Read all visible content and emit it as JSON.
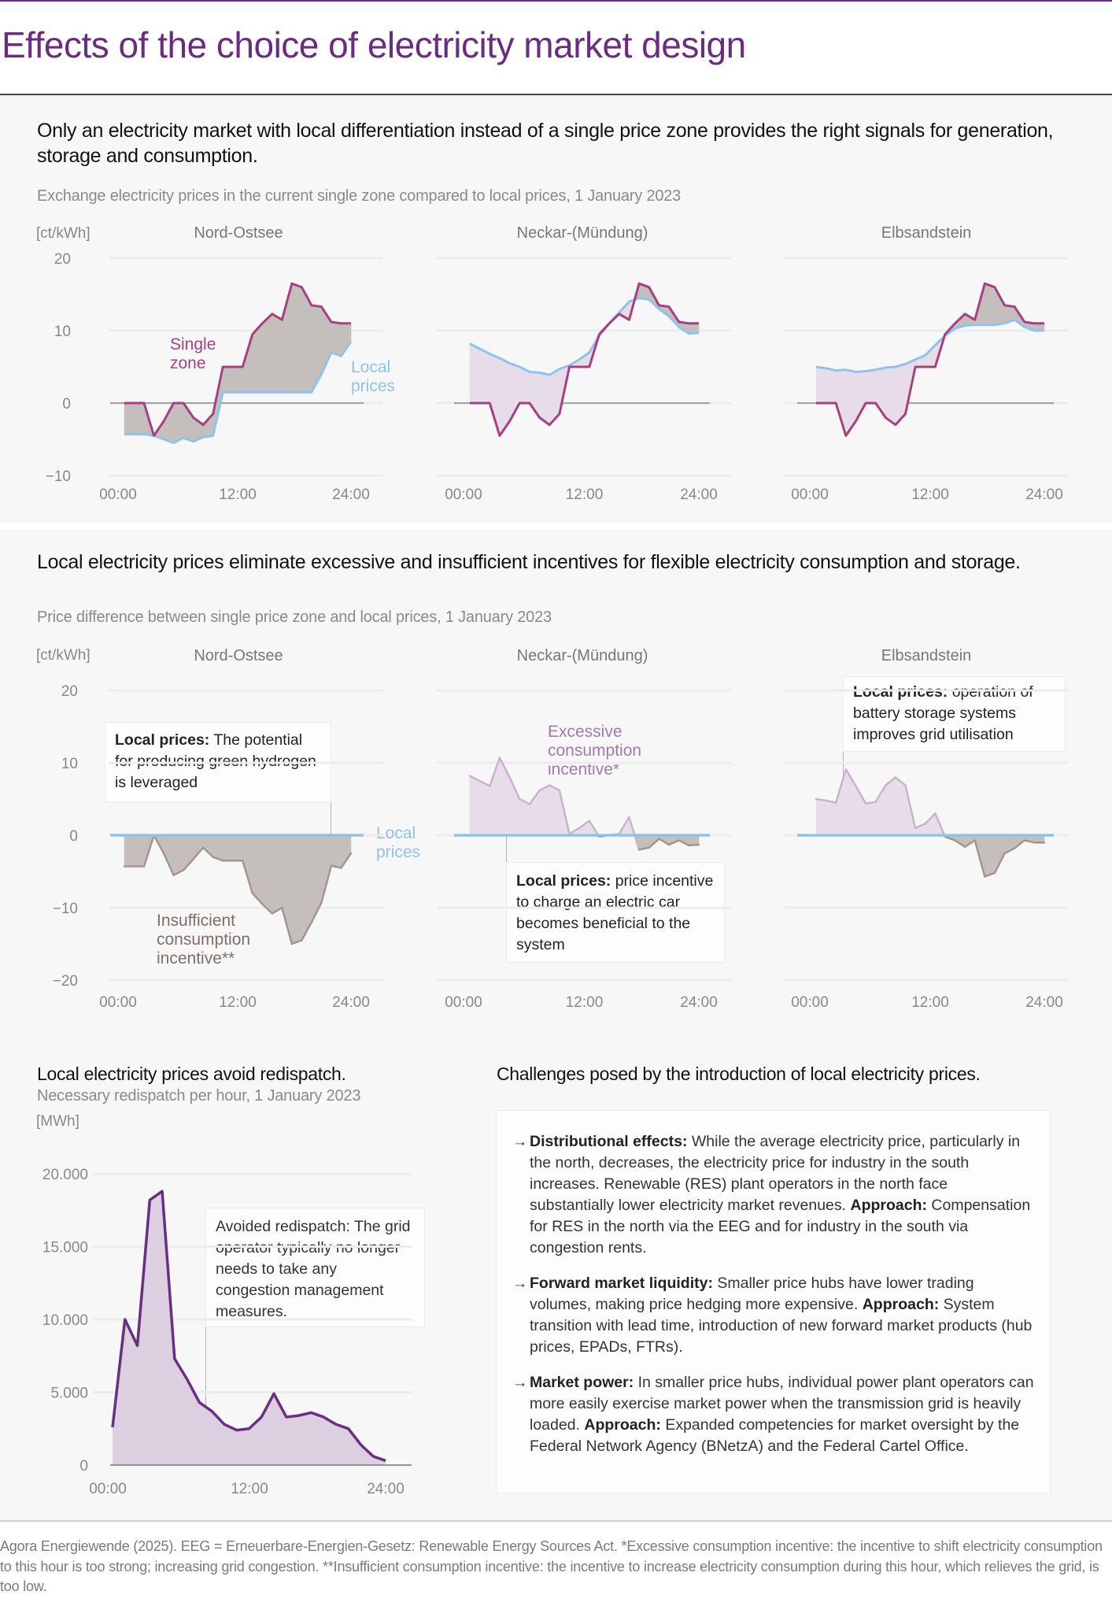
{
  "header": {
    "title": "Effects of the choice of electricity market design"
  },
  "section1": {
    "headline": "Only an electricity market with local differentiation instead of a single price zone provides the right signals for generation, storage and consumption.",
    "subtitle": "Exchange electricity prices in the current single zone compared to local prices, 1 January 2023"
  },
  "section2": {
    "headline": "Local electricity prices eliminate excessive and insufficient incentives for flexible electricity consumption and storage.",
    "subtitle": "Price difference between single price zone and local prices, 1 January 2023"
  },
  "redispatch": {
    "headline": "Local electricity prices avoid redispatch.",
    "subtitle": "Necessary redispatch per hour, 1 January 2023"
  },
  "challenges": {
    "title": "Challenges posed by the introduction of local electricity prices.",
    "arrow_icon": "→",
    "items": [
      {
        "term": "Distributional effects:",
        "text": " While the average electricity price, par­ticularly in the north, decreases, the electricity price for indus­try in the south increases. Renewable (RES) plant operators in the north face substantially lower electricity market revenues. ",
        "approach_label": "Approach:",
        "approach_text": " Compensation for RES in the north via the EEG and for industry in the south via congestion rents."
      },
      {
        "term": "Forward market liquidity:",
        "text": " Smaller price hubs have lower trading volumes, making price hedging more expensive. ",
        "approach_label": "Approach:",
        "approach_text": " System transition with lead time, introduction of new forward market products (hub prices, EPADs, FTRs)."
      },
      {
        "term": "Market power:",
        "text": " In smaller price hubs, individual power plant operators can more easily exercise market power when the transmission grid is heavily loaded. ",
        "approach_label": "Approach:",
        "approach_text": " Expanded com­petencies for market oversight by the Federal Network Agency (BNetzA) and the Federal Cartel Office."
      }
    ]
  },
  "footer": {
    "source": "Agora Energiewende (2025). EEG = Erneuerbare-Energien-Gesetz: Renewable Energy Sources Act. *Excessive consumption incentive: the in­centive to shift electricity consumption to this hour is too strong; increasing grid congestion. **Insufficient consumption incentive: the incentive to increase electricity consumption during this hour, which relieves the grid, is too low."
  },
  "colors": {
    "brand_purple": "#6a2c7e",
    "single_zone": "#a8407f",
    "local_prices": "#8ec3ec",
    "fill_single_above": "#c4bfbd",
    "fill_local_above": "#e6dde8",
    "diff_negative_line": "#a39592",
    "diff_positive_line": "#c9b3cc",
    "redispatch_line": "#6b2f82",
    "redispatch_fill": "#dccfe0"
  },
  "chart_data": [
    {
      "type": "line",
      "unit_label": "[ct/kWh]",
      "ylim": [
        -10,
        20
      ],
      "yticks": [
        "20",
        "10",
        "0",
        "−10"
      ],
      "xticks": [
        "00:00",
        "12:00",
        "24:00"
      ],
      "grid": true,
      "x": [
        "00:00",
        "01:00",
        "02:00",
        "03:00",
        "04:00",
        "05:00",
        "06:00",
        "07:00",
        "08:00",
        "09:00",
        "10:00",
        "11:00",
        "12:00",
        "13:00",
        "14:00",
        "15:00",
        "16:00",
        "17:00",
        "18:00",
        "19:00",
        "20:00",
        "21:00",
        "22:00",
        "23:00"
      ],
      "series_labels": {
        "single": "Single zone",
        "local": "Local prices"
      },
      "panels": [
        {
          "title": "Nord-Ostsee",
          "series": [
            {
              "name": "Single zone",
              "values": [
                0,
                0,
                0,
                -4.5,
                -2.5,
                0,
                0,
                -2,
                -3,
                -1.5,
                5,
                5,
                5,
                9.5,
                11,
                12.3,
                11.5,
                16.5,
                16,
                13.5,
                13.3,
                11.2,
                11,
                11
              ]
            },
            {
              "name": "Local prices",
              "values": [
                -4.3,
                -4.3,
                -4.3,
                -4.5,
                -5,
                -5.5,
                -4.8,
                -5.3,
                -4.7,
                -4.5,
                1.5,
                1.5,
                1.5,
                1.5,
                1.5,
                1.5,
                1.5,
                1.5,
                1.5,
                1.5,
                4,
                7,
                6.5,
                8.5
              ]
            }
          ]
        },
        {
          "title": "Neckar-(Mündung)",
          "series": [
            {
              "name": "Single zone",
              "values": [
                0,
                0,
                0,
                -4.5,
                -2.5,
                0,
                0,
                -2,
                -3,
                -1.5,
                5,
                5,
                5,
                9.5,
                11,
                12.3,
                11.5,
                16.5,
                16,
                13.5,
                13.3,
                11.2,
                11,
                11
              ]
            },
            {
              "name": "Local prices",
              "values": [
                8.2,
                7.5,
                6.8,
                6.2,
                5.5,
                5,
                4.3,
                4.2,
                3.9,
                4.7,
                5.2,
                6,
                7,
                9.3,
                11,
                12.5,
                14,
                14.5,
                14.3,
                13,
                12,
                10.5,
                9.6,
                9.7
              ]
            }
          ]
        },
        {
          "title": "Elbsandstein",
          "series": [
            {
              "name": "Single zone",
              "values": [
                0,
                0,
                0,
                -4.5,
                -2.5,
                0,
                0,
                -2,
                -3,
                -1.5,
                5,
                5,
                5,
                9.5,
                11,
                12.3,
                11.5,
                16.5,
                16,
                13.5,
                13.3,
                11.2,
                11,
                11
              ]
            },
            {
              "name": "Local prices",
              "values": [
                5,
                4.8,
                4.5,
                4.6,
                4.3,
                4.4,
                4.6,
                4.9,
                5,
                5.4,
                6,
                6.6,
                8,
                9.3,
                10.3,
                10.7,
                10.8,
                10.8,
                10.8,
                11,
                11.5,
                10.5,
                10,
                10
              ]
            }
          ]
        }
      ]
    },
    {
      "type": "area",
      "unit_label": "[ct/kWh]",
      "ylim": [
        -20,
        20
      ],
      "yticks": [
        "20",
        "10",
        "0",
        "−10",
        "−20"
      ],
      "xticks": [
        "00:00",
        "12:00",
        "24:00"
      ],
      "grid": true,
      "baseline_label": "Local prices",
      "annotations": {
        "insufficient": "Insufficient consumption incentive**",
        "excessive": "Excessive consumption incentive*",
        "box_hydrogen": {
          "bold": "Local prices:",
          "text": " The poten­tial for producing green hydrogen is leveraged"
        },
        "box_ev": {
          "bold": "Local prices:",
          "text": " price incen­tive to charge an electric car becomes beneficial to the system"
        },
        "box_battery": {
          "bold": "Local prices:",
          "text": " operation of battery storage systems improves grid utilisation"
        }
      },
      "panels": [
        {
          "title": "Nord-Ostsee",
          "values": [
            -4.3,
            -4.3,
            -4.3,
            0,
            -2.5,
            -5.5,
            -4.8,
            -3.3,
            -1.7,
            -3,
            -3.5,
            -3.5,
            -3.5,
            -8,
            -9.5,
            -10.8,
            -10,
            -15,
            -14.5,
            -12,
            -9.3,
            -4.2,
            -4.5,
            -2.5
          ]
        },
        {
          "title": "Neckar-(Mündung)",
          "values": [
            8.2,
            7.5,
            6.8,
            10.7,
            8,
            5,
            4.3,
            6.2,
            6.9,
            6.2,
            0.2,
            1,
            2,
            -0.2,
            0,
            0.2,
            2.5,
            -2,
            -1.7,
            -0.5,
            -1.3,
            -0.7,
            -1.4,
            -1.3
          ]
        },
        {
          "title": "Elbsandstein",
          "values": [
            5,
            4.8,
            4.5,
            9.1,
            6.8,
            4.4,
            4.6,
            6.9,
            8,
            6.9,
            1,
            1.6,
            3,
            -0.2,
            -0.7,
            -1.6,
            -0.7,
            -5.7,
            -5.2,
            -2.5,
            -1.8,
            -0.7,
            -1,
            -1
          ]
        }
      ]
    },
    {
      "type": "area",
      "unit_label": "[MWh]",
      "ylim": [
        0,
        20000
      ],
      "yticks": [
        "20.000",
        "15.000",
        "10.000",
        "5.000",
        "0"
      ],
      "xticks": [
        "00:00",
        "12:00",
        "24:00"
      ],
      "grid": true,
      "annotation": "Avoided redispatch: The grid operator typically no longer needs to take any congestion manage­ment measures.",
      "values": [
        2600,
        10000,
        8200,
        18200,
        18800,
        7300,
        5900,
        4300,
        3700,
        2800,
        2400,
        2500,
        3300,
        4900,
        3300,
        3400,
        3600,
        3300,
        2800,
        2500,
        1400,
        600,
        300
      ]
    }
  ]
}
